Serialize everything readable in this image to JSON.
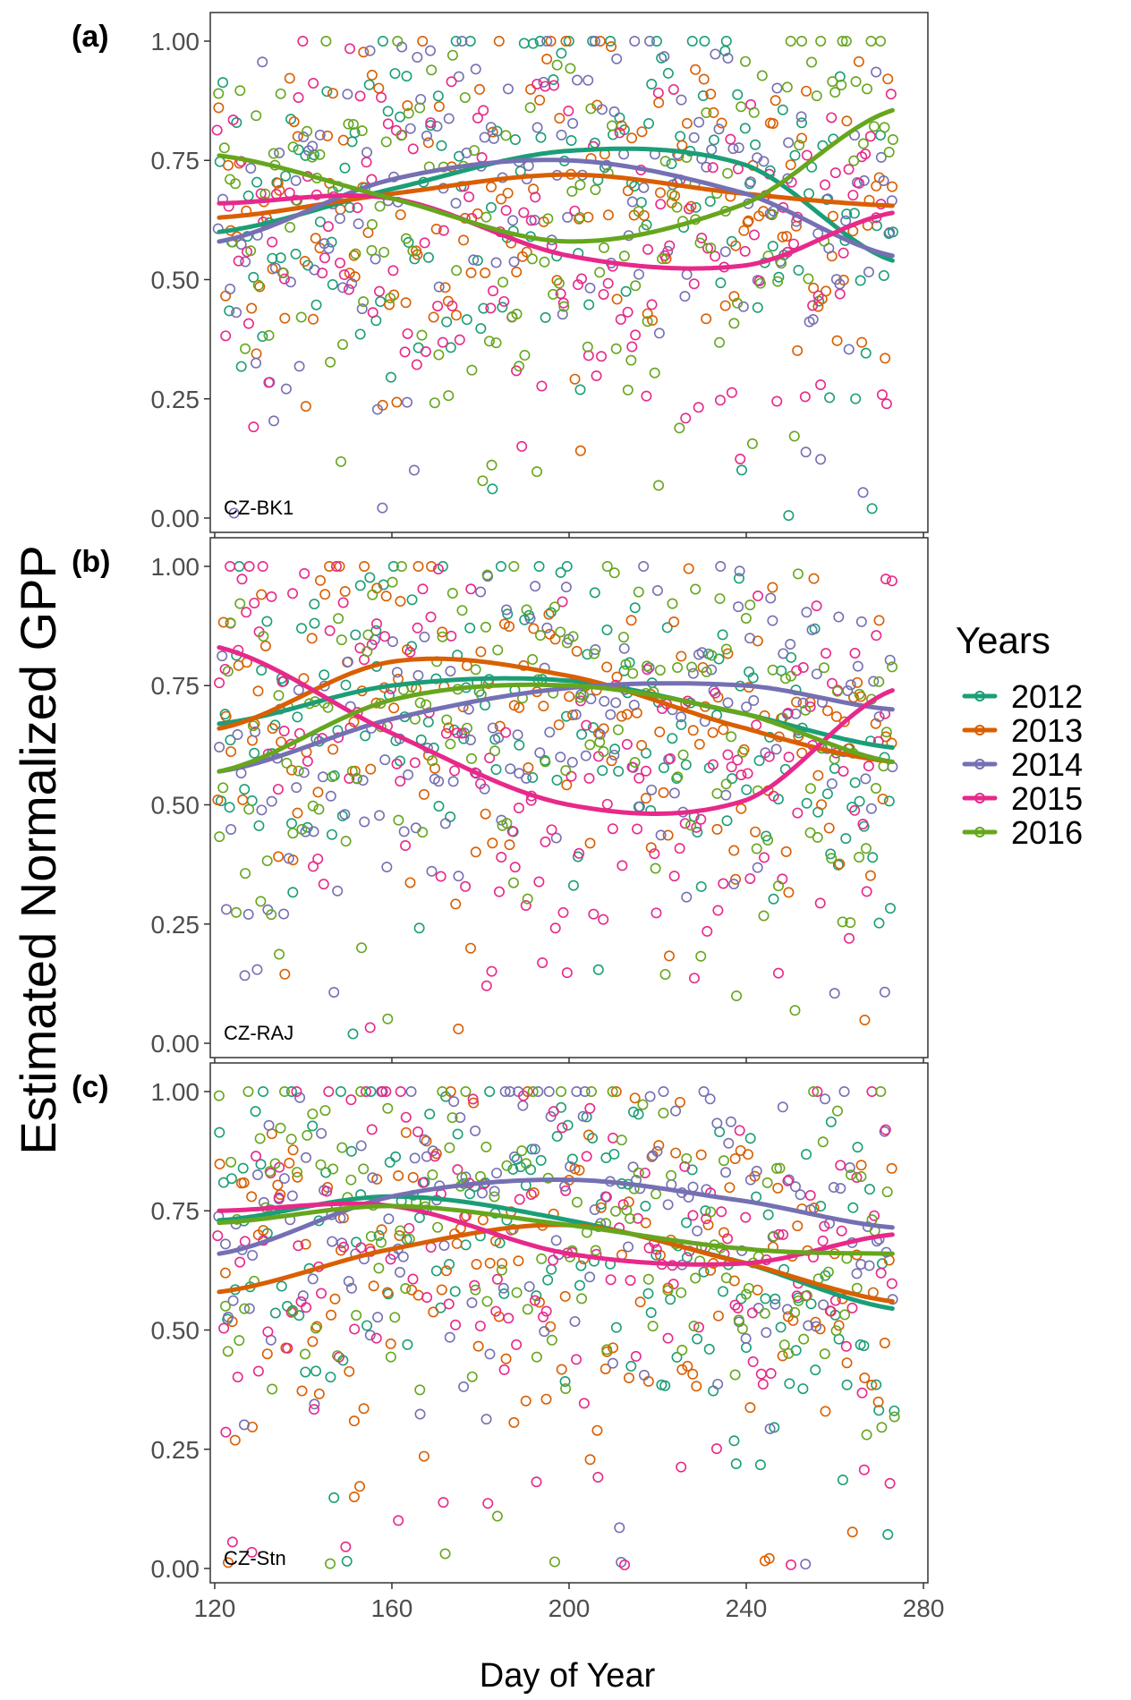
{
  "chart_data": {
    "type": "scatter",
    "ylabel": "Estimated Normalized GPP",
    "xlabel": "Day of Year",
    "xlim": [
      119,
      281
    ],
    "ylim": [
      -0.03,
      1.06
    ],
    "x_ticks": [
      120,
      160,
      200,
      240,
      280
    ],
    "x_tick_labels": [
      "120",
      "160",
      "200",
      "240",
      "280"
    ],
    "y_ticks": [
      0,
      0.25,
      0.5,
      0.75,
      1
    ],
    "y_tick_labels": [
      "0.00",
      "0.25",
      "0.50",
      "0.75",
      "1.00"
    ],
    "legend": {
      "title": "Years",
      "position": "right",
      "entries": [
        {
          "label": "2012",
          "color": "#1b9e77"
        },
        {
          "label": "2013",
          "color": "#d95f02"
        },
        {
          "label": "2014",
          "color": "#7570b3"
        },
        {
          "label": "2015",
          "color": "#e7298a"
        },
        {
          "label": "2016",
          "color": "#66a61e"
        }
      ]
    },
    "panels": [
      {
        "tag": "(a)",
        "site": "CZ-BK1",
        "smooth": {
          "x": [
            121,
            160,
            200,
            240,
            273
          ],
          "2012": [
            0.6,
            0.69,
            0.77,
            0.74,
            0.54
          ],
          "2013": [
            0.63,
            0.68,
            0.72,
            0.68,
            0.655
          ],
          "2014": [
            0.58,
            0.71,
            0.75,
            0.68,
            0.55
          ],
          "2015": [
            0.66,
            0.67,
            0.55,
            0.53,
            0.64
          ],
          "2016": [
            0.76,
            0.67,
            0.58,
            0.66,
            0.855
          ]
        }
      },
      {
        "tag": "(b)",
        "site": "CZ-RAJ",
        "smooth": {
          "x": [
            121,
            160,
            200,
            240,
            273
          ],
          "2012": [
            0.67,
            0.75,
            0.76,
            0.69,
            0.62
          ],
          "2013": [
            0.66,
            0.8,
            0.77,
            0.66,
            0.59
          ],
          "2014": [
            0.57,
            0.68,
            0.745,
            0.75,
            0.7
          ],
          "2015": [
            0.83,
            0.65,
            0.5,
            0.51,
            0.74
          ],
          "2016": [
            0.57,
            0.72,
            0.75,
            0.69,
            0.59
          ]
        }
      },
      {
        "tag": "(c)",
        "site": "CZ-Stn",
        "smooth": {
          "x": [
            121,
            160,
            200,
            240,
            273
          ],
          "2012": [
            0.73,
            0.78,
            0.73,
            0.64,
            0.545
          ],
          "2013": [
            0.58,
            0.67,
            0.72,
            0.64,
            0.56
          ],
          "2014": [
            0.66,
            0.78,
            0.815,
            0.77,
            0.715
          ],
          "2015": [
            0.75,
            0.76,
            0.66,
            0.64,
            0.7
          ],
          "2016": [
            0.725,
            0.76,
            0.72,
            0.67,
            0.66
          ]
        }
      }
    ],
    "scatter_note": "open circles, daily estimates for each year (≈150 points per year per site, spread over 0–1)"
  }
}
